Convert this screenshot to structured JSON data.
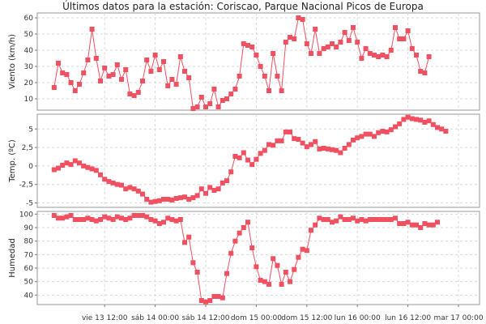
{
  "chart_data": {
    "type": "line",
    "title": "Últimos datos para la estación: Coriscao, Parque Nacional Picos de Europa",
    "x_tick_labels": [
      "vie 13 12:00",
      "sáb 14 00:00",
      "sáb 14 12:00",
      "dom 15 00:00",
      "dom 15 12:00",
      "lun 16 00:00",
      "lun 16 12:00",
      "mar 17 00:00"
    ],
    "x_tick_hours": [
      12,
      24,
      36,
      48,
      60,
      72,
      84,
      96
    ],
    "x_range_hours": [
      -4,
      101
    ],
    "series_x_start_hours": 0,
    "series_x_step_hours": 1,
    "color": "#f05060",
    "panels": [
      {
        "ylabel": "Viento (km/h)",
        "ylim": [
          3,
          63
        ],
        "yticks": [
          10,
          20,
          30,
          40,
          50,
          60
        ],
        "ytick_labels": [
          "10",
          "20",
          "30",
          "40",
          "50",
          "60"
        ],
        "values": [
          17,
          32,
          26,
          25,
          20,
          15,
          19,
          26,
          34,
          53,
          35,
          21,
          29,
          24,
          25,
          31,
          22,
          28,
          13,
          12,
          14,
          21,
          34,
          27,
          37,
          28,
          33,
          18,
          22,
          19,
          36,
          27,
          23,
          4,
          5,
          11,
          5,
          7,
          16,
          5,
          9,
          10,
          13,
          16,
          24,
          44,
          43,
          42,
          37,
          30,
          24,
          15,
          38,
          24,
          15,
          45,
          48,
          47,
          60,
          59,
          44,
          38,
          53,
          38,
          41,
          42,
          44,
          42,
          45,
          51,
          46,
          54,
          45,
          35,
          41,
          38,
          37,
          36,
          37,
          36,
          40,
          54,
          47,
          47,
          52,
          41,
          37,
          27,
          26,
          36
        ]
      },
      {
        "ylabel": "Temp. (ºC)",
        "ylim": [
          -5.6,
          7
        ],
        "yticks": [
          -5,
          -2.5,
          0,
          2.5,
          5
        ],
        "ytick_labels": [
          "-5",
          "-2,5",
          "0",
          "2,5",
          "5"
        ],
        "values": [
          -0.5,
          -0.3,
          0.1,
          0.4,
          0.2,
          0.7,
          0.4,
          0,
          -0.2,
          -0.4,
          -0.6,
          -1.2,
          -1.8,
          -2.1,
          -2.3,
          -2.5,
          -2.6,
          -3.1,
          -2.9,
          -3.1,
          -3.4,
          -3.8,
          -4.5,
          -4.9,
          -4.8,
          -4.7,
          -4.5,
          -4.5,
          -4.6,
          -4.4,
          -4.3,
          -4.2,
          -4.5,
          -4.3,
          -4,
          -3.1,
          -3.7,
          -2.9,
          -3.3,
          -3.1,
          -2.3,
          -2,
          -0.8,
          1.3,
          1.1,
          1.8,
          0.8,
          0.2,
          0.9,
          1.7,
          2.1,
          2.9,
          2.8,
          3.4,
          3.4,
          4.6,
          4.6,
          3.7,
          3.6,
          3.1,
          2.6,
          2.9,
          3.3,
          2.3,
          2.4,
          2.3,
          2.2,
          2.1,
          1.8,
          2.4,
          2.9,
          3.5,
          3.8,
          4,
          4.3,
          4.3,
          4,
          4.5,
          4.7,
          4.6,
          4.9,
          5.3,
          5.7,
          6.3,
          6.6,
          6.4,
          6.3,
          6.2,
          5.9,
          6.1,
          5.6,
          5.2,
          5,
          4.7
        ]
      },
      {
        "ylabel": "Humedad",
        "ylim": [
          33,
          102
        ],
        "yticks": [
          40,
          50,
          60,
          70,
          80,
          90,
          100
        ],
        "ytick_labels": [
          "40",
          "50",
          "60",
          "70",
          "80",
          "90",
          "100"
        ],
        "values": [
          99,
          97,
          97,
          98,
          99,
          96,
          96,
          96,
          97,
          96,
          95,
          96,
          98,
          97,
          96,
          98,
          97,
          96,
          97,
          99,
          99,
          99,
          98,
          96,
          95,
          93,
          94,
          97,
          96,
          95,
          96,
          79,
          83,
          64,
          57,
          36,
          35,
          36,
          39,
          39,
          38,
          56,
          71,
          80,
          86,
          90,
          94,
          75,
          61,
          51,
          50,
          48,
          67,
          62,
          48,
          57,
          50,
          59,
          68,
          74,
          73,
          88,
          92,
          97,
          96,
          96,
          94,
          95,
          98,
          96,
          96,
          97,
          95,
          96,
          95,
          96,
          96,
          96,
          96,
          96,
          96,
          97,
          93,
          93,
          94,
          92,
          92,
          90,
          93,
          92,
          92,
          94
        ]
      }
    ]
  }
}
